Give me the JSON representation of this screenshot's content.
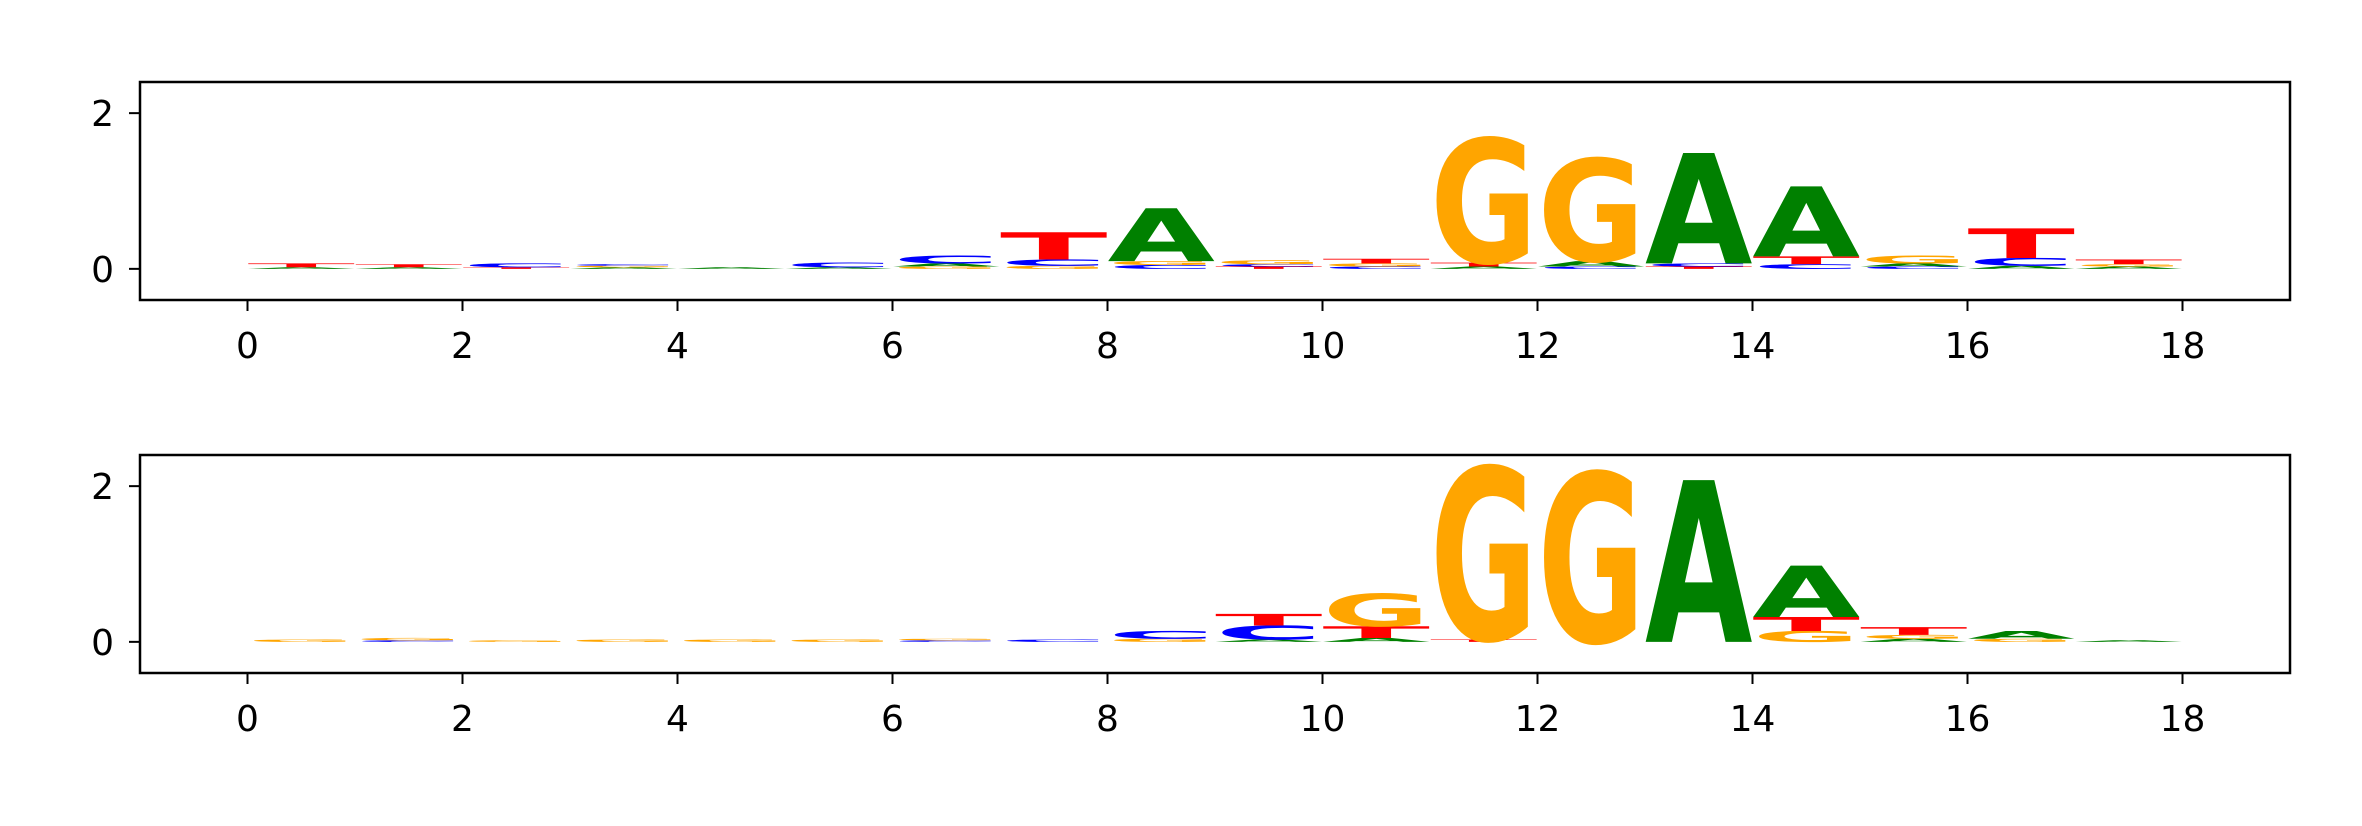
{
  "colors": {
    "A": "#008000",
    "C": "#0000ff",
    "G": "#ffa500",
    "T": "#ff0000",
    "axis": "#000000"
  },
  "chart_data": [
    {
      "type": "sequence-logo",
      "xlim": [
        -1,
        19
      ],
      "ylim": [
        -0.4,
        2.4
      ],
      "xticks": [
        0,
        2,
        4,
        6,
        8,
        10,
        12,
        14,
        16,
        18
      ],
      "yticks": [
        0,
        2
      ],
      "grid": false,
      "positions": [
        {
          "pos": 0,
          "letters": [
            {
              "base": "A",
              "height": 0.02
            },
            {
              "base": "T",
              "height": 0.05
            }
          ]
        },
        {
          "pos": 1,
          "letters": [
            {
              "base": "A",
              "height": 0.02
            },
            {
              "base": "T",
              "height": 0.04
            }
          ]
        },
        {
          "pos": 2,
          "letters": [
            {
              "base": "T",
              "height": 0.02
            },
            {
              "base": "C",
              "height": 0.05
            }
          ]
        },
        {
          "pos": 3,
          "letters": [
            {
              "base": "A",
              "height": 0.02
            },
            {
              "base": "G",
              "height": 0.02
            },
            {
              "base": "C",
              "height": 0.02
            }
          ]
        },
        {
          "pos": 4,
          "letters": [
            {
              "base": "A",
              "height": 0.02
            }
          ]
        },
        {
          "pos": 5,
          "letters": [
            {
              "base": "A",
              "height": 0.02
            },
            {
              "base": "C",
              "height": 0.06
            }
          ]
        },
        {
          "pos": 6,
          "letters": [
            {
              "base": "G",
              "height": 0.03
            },
            {
              "base": "A",
              "height": 0.04
            },
            {
              "base": "C",
              "height": 0.1
            }
          ]
        },
        {
          "pos": 7,
          "letters": [
            {
              "base": "G",
              "height": 0.04
            },
            {
              "base": "C",
              "height": 0.08
            },
            {
              "base": "T",
              "height": 0.35
            }
          ]
        },
        {
          "pos": 8,
          "letters": [
            {
              "base": "C",
              "height": 0.05
            },
            {
              "base": "G",
              "height": 0.05
            },
            {
              "base": "A",
              "height": 0.68
            }
          ]
        },
        {
          "pos": 9,
          "letters": [
            {
              "base": "T",
              "height": 0.03
            },
            {
              "base": "C",
              "height": 0.03
            },
            {
              "base": "G",
              "height": 0.05
            }
          ]
        },
        {
          "pos": 10,
          "letters": [
            {
              "base": "C",
              "height": 0.03
            },
            {
              "base": "G",
              "height": 0.04
            },
            {
              "base": "T",
              "height": 0.06
            }
          ]
        },
        {
          "pos": 11,
          "letters": [
            {
              "base": "A",
              "height": 0.03
            },
            {
              "base": "T",
              "height": 0.05
            },
            {
              "base": "G",
              "height": 1.6
            }
          ]
        },
        {
          "pos": 12,
          "letters": [
            {
              "base": "C",
              "height": 0.03
            },
            {
              "base": "A",
              "height": 0.07
            },
            {
              "base": "G",
              "height": 1.32
            }
          ]
        },
        {
          "pos": 13,
          "letters": [
            {
              "base": "T",
              "height": 0.03
            },
            {
              "base": "C",
              "height": 0.04
            },
            {
              "base": "A",
              "height": 1.42
            }
          ]
        },
        {
          "pos": 14,
          "letters": [
            {
              "base": "C",
              "height": 0.06
            },
            {
              "base": "T",
              "height": 0.1
            },
            {
              "base": "A",
              "height": 0.9
            }
          ]
        },
        {
          "pos": 15,
          "letters": [
            {
              "base": "C",
              "height": 0.03
            },
            {
              "base": "A",
              "height": 0.04
            },
            {
              "base": "G",
              "height": 0.1
            }
          ]
        },
        {
          "pos": 16,
          "letters": [
            {
              "base": "A",
              "height": 0.04
            },
            {
              "base": "C",
              "height": 0.1
            },
            {
              "base": "T",
              "height": 0.38
            }
          ]
        },
        {
          "pos": 17,
          "letters": [
            {
              "base": "A",
              "height": 0.03
            },
            {
              "base": "G",
              "height": 0.03
            },
            {
              "base": "T",
              "height": 0.06
            }
          ]
        }
      ]
    },
    {
      "type": "sequence-logo",
      "xlim": [
        -1,
        19
      ],
      "ylim": [
        -0.4,
        2.4
      ],
      "xticks": [
        0,
        2,
        4,
        6,
        8,
        10,
        12,
        14,
        16,
        18
      ],
      "yticks": [
        0,
        2
      ],
      "grid": false,
      "positions": [
        {
          "pos": 0,
          "letters": [
            {
              "base": "G",
              "height": 0.03
            }
          ]
        },
        {
          "pos": 1,
          "letters": [
            {
              "base": "C",
              "height": 0.02
            },
            {
              "base": "G",
              "height": 0.03
            }
          ]
        },
        {
          "pos": 2,
          "letters": [
            {
              "base": "G",
              "height": 0.02
            }
          ]
        },
        {
          "pos": 3,
          "letters": [
            {
              "base": "G",
              "height": 0.03
            }
          ]
        },
        {
          "pos": 4,
          "letters": [
            {
              "base": "G",
              "height": 0.03
            }
          ]
        },
        {
          "pos": 5,
          "letters": [
            {
              "base": "G",
              "height": 0.03
            }
          ]
        },
        {
          "pos": 6,
          "letters": [
            {
              "base": "C",
              "height": 0.02
            },
            {
              "base": "G",
              "height": 0.02
            }
          ]
        },
        {
          "pos": 7,
          "letters": [
            {
              "base": "C",
              "height": 0.03
            }
          ]
        },
        {
          "pos": 8,
          "letters": [
            {
              "base": "G",
              "height": 0.04
            },
            {
              "base": "C",
              "height": 0.1
            }
          ]
        },
        {
          "pos": 9,
          "letters": [
            {
              "base": "A",
              "height": 0.03
            },
            {
              "base": "C",
              "height": 0.18
            },
            {
              "base": "T",
              "height": 0.15
            }
          ]
        },
        {
          "pos": 10,
          "letters": [
            {
              "base": "A",
              "height": 0.05
            },
            {
              "base": "T",
              "height": 0.15
            },
            {
              "base": "G",
              "height": 0.42
            }
          ]
        },
        {
          "pos": 11,
          "letters": [
            {
              "base": "T",
              "height": 0.03
            },
            {
              "base": "G",
              "height": 2.22
            }
          ]
        },
        {
          "pos": 12,
          "letters": [
            {
              "base": "G",
              "height": 2.18
            }
          ]
        },
        {
          "pos": 13,
          "letters": [
            {
              "base": "A",
              "height": 2.08
            }
          ]
        },
        {
          "pos": 14,
          "letters": [
            {
              "base": "G",
              "height": 0.14
            },
            {
              "base": "T",
              "height": 0.18
            },
            {
              "base": "A",
              "height": 0.66
            }
          ]
        },
        {
          "pos": 15,
          "letters": [
            {
              "base": "A",
              "height": 0.04
            },
            {
              "base": "G",
              "height": 0.05
            },
            {
              "base": "T",
              "height": 0.1
            }
          ]
        },
        {
          "pos": 16,
          "letters": [
            {
              "base": "G",
              "height": 0.04
            },
            {
              "base": "A",
              "height": 0.1
            }
          ]
        },
        {
          "pos": 17,
          "letters": [
            {
              "base": "A",
              "height": 0.02
            }
          ]
        }
      ]
    }
  ]
}
